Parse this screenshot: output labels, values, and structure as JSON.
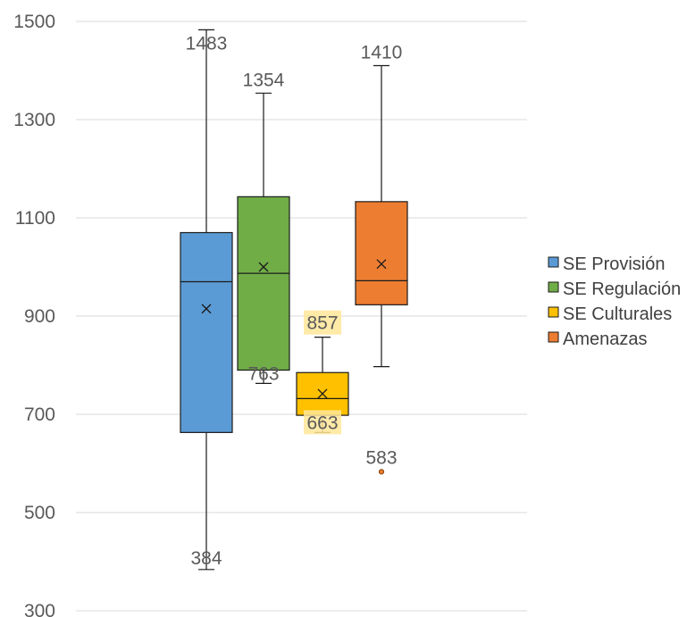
{
  "chart_data": {
    "type": "boxplot",
    "ylim": [
      300,
      1500
    ],
    "yticks": [
      300,
      500,
      700,
      900,
      1100,
      1300,
      1500
    ],
    "grid": true,
    "legend_position": "right",
    "series": [
      {
        "name": "SE Provisión",
        "color": "#5B9BD5",
        "min": 384,
        "q1": 663,
        "median": 970,
        "q3": 1070,
        "max": 1483,
        "mean": 915,
        "outliers": [],
        "data_labels": {
          "max": "1483",
          "min": "384"
        }
      },
      {
        "name": "SE Regulación",
        "color": "#70AD47",
        "min": 763,
        "q1": 790,
        "median": 987,
        "q3": 1143,
        "max": 1354,
        "mean": 1000,
        "outliers": [],
        "data_labels": {
          "max": "1354",
          "min": "763"
        }
      },
      {
        "name": "SE Culturales",
        "color": "#FFC000",
        "min": 663,
        "q1": 698,
        "median": 732,
        "q3": 785,
        "max": 857,
        "mean": 742,
        "outliers": [],
        "data_labels": {
          "max": "857",
          "min": "663"
        }
      },
      {
        "name": "Amenazas",
        "color": "#ED7D31",
        "min": 797,
        "q1": 923,
        "median": 972,
        "q3": 1133,
        "max": 1410,
        "mean": 1006,
        "outliers": [
          583
        ],
        "data_labels": {
          "max": "1410",
          "outlier": "583"
        }
      }
    ]
  }
}
